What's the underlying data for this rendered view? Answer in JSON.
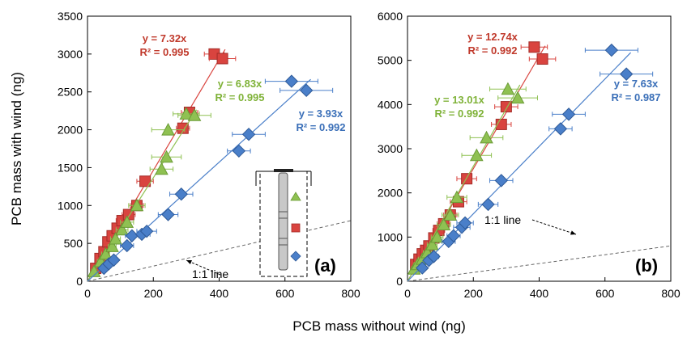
{
  "figure": {
    "shared_xlabel": "PCB mass without wind (ng)",
    "shared_ylabel": "PCB mass with wind (ng)",
    "colors": {
      "red": "#d9443f",
      "green": "#8fc152",
      "blue": "#4a7fc9",
      "red_text": "#c0392b",
      "green_text": "#7fb238",
      "blue_text": "#3a6fb8"
    }
  },
  "chart_data": [
    {
      "type": "scatter",
      "panel_label": "(a)",
      "xlim": [
        0,
        800
      ],
      "ylim": [
        0,
        3500
      ],
      "xticks": [
        0,
        200,
        400,
        600,
        800
      ],
      "yticks": [
        0,
        500,
        1000,
        1500,
        2000,
        2500,
        3000,
        3500
      ],
      "reference_line": {
        "label": "1:1 line",
        "slope": 1
      },
      "series": [
        {
          "color": "red",
          "marker": "square",
          "slope": 7.32,
          "equation": "y = 7.32x",
          "r2": "R² = 0.995",
          "points": [
            [
              25,
              170,
              8
            ],
            [
              38,
              300,
              10
            ],
            [
              50,
              390,
              10
            ],
            [
              62,
              520,
              12
            ],
            [
              75,
              600,
              12
            ],
            [
              90,
              700,
              15
            ],
            [
              105,
              800,
              18
            ],
            [
              125,
              880,
              20
            ],
            [
              150,
              1000,
              20
            ],
            [
              175,
              1320,
              25
            ],
            [
              290,
              2020,
              20
            ],
            [
              310,
              2230,
              25
            ],
            [
              385,
              3000,
              30
            ],
            [
              410,
              2940,
              40
            ]
          ]
        },
        {
          "color": "green",
          "marker": "triangle",
          "slope": 6.83,
          "equation": "y = 6.83x",
          "r2": "R² = 0.995",
          "points": [
            [
              20,
              130,
              8
            ],
            [
              40,
              260,
              10
            ],
            [
              55,
              360,
              12
            ],
            [
              75,
              460,
              12
            ],
            [
              85,
              560,
              15
            ],
            [
              105,
              680,
              18
            ],
            [
              120,
              780,
              20
            ],
            [
              150,
              1000,
              25
            ],
            [
              225,
              1480,
              35
            ],
            [
              240,
              1640,
              45
            ],
            [
              245,
              2000,
              50
            ],
            [
              300,
              2210,
              40
            ],
            [
              325,
              2190,
              50
            ]
          ]
        },
        {
          "color": "blue",
          "marker": "diamond",
          "slope": 3.93,
          "equation": "y = 3.93x",
          "r2": "R² = 0.992",
          "points": [
            [
              50,
              170,
              10
            ],
            [
              65,
              230,
              12
            ],
            [
              80,
              280,
              12
            ],
            [
              120,
              470,
              20
            ],
            [
              135,
              600,
              20
            ],
            [
              165,
              620,
              25
            ],
            [
              180,
              660,
              30
            ],
            [
              245,
              880,
              30
            ],
            [
              285,
              1150,
              35
            ],
            [
              460,
              1720,
              35
            ],
            [
              490,
              1940,
              50
            ],
            [
              620,
              2640,
              80
            ],
            [
              665,
              2520,
              80
            ]
          ]
        }
      ]
    },
    {
      "type": "scatter",
      "panel_label": "(b)",
      "xlim": [
        0,
        800
      ],
      "ylim": [
        0,
        6000
      ],
      "xticks": [
        0,
        200,
        400,
        600,
        800
      ],
      "yticks": [
        0,
        1000,
        2000,
        3000,
        4000,
        5000,
        6000
      ],
      "reference_line": {
        "label": "1:1 line",
        "slope": 1
      },
      "series": [
        {
          "color": "red",
          "marker": "square",
          "slope": 12.74,
          "equation": "y = 12.74x",
          "r2": "R² = 0.992",
          "points": [
            [
              25,
              380,
              8
            ],
            [
              35,
              500,
              10
            ],
            [
              45,
              620,
              10
            ],
            [
              55,
              700,
              12
            ],
            [
              65,
              800,
              12
            ],
            [
              80,
              980,
              15
            ],
            [
              95,
              1150,
              18
            ],
            [
              110,
              1300,
              20
            ],
            [
              130,
              1500,
              20
            ],
            [
              155,
              1800,
              25
            ],
            [
              180,
              2320,
              30
            ],
            [
              285,
              3550,
              30
            ],
            [
              300,
              3950,
              35
            ],
            [
              385,
              5300,
              40
            ],
            [
              410,
              5030,
              40
            ]
          ]
        },
        {
          "color": "green",
          "marker": "triangle",
          "slope": 13.01,
          "equation": "y = 13.01x",
          "r2": "R² = 0.992",
          "points": [
            [
              20,
              280,
              8
            ],
            [
              30,
              380,
              10
            ],
            [
              45,
              500,
              12
            ],
            [
              60,
              650,
              12
            ],
            [
              75,
              830,
              15
            ],
            [
              90,
              1000,
              18
            ],
            [
              110,
              1280,
              20
            ],
            [
              130,
              1500,
              25
            ],
            [
              150,
              1900,
              30
            ],
            [
              210,
              2850,
              45
            ],
            [
              240,
              3250,
              50
            ],
            [
              305,
              4350,
              55
            ],
            [
              335,
              4150,
              60
            ]
          ]
        },
        {
          "color": "blue",
          "marker": "diamond",
          "slope": 7.63,
          "equation": "y = 7.63x",
          "r2": "R² = 0.987",
          "points": [
            [
              45,
              300,
              10
            ],
            [
              65,
              470,
              12
            ],
            [
              80,
              560,
              15
            ],
            [
              125,
              900,
              20
            ],
            [
              140,
              1030,
              20
            ],
            [
              165,
              1220,
              25
            ],
            [
              175,
              1320,
              25
            ],
            [
              245,
              1740,
              30
            ],
            [
              285,
              2280,
              35
            ],
            [
              465,
              3450,
              35
            ],
            [
              490,
              3780,
              50
            ],
            [
              620,
              5230,
              80
            ],
            [
              665,
              4690,
              80
            ]
          ]
        }
      ]
    }
  ]
}
